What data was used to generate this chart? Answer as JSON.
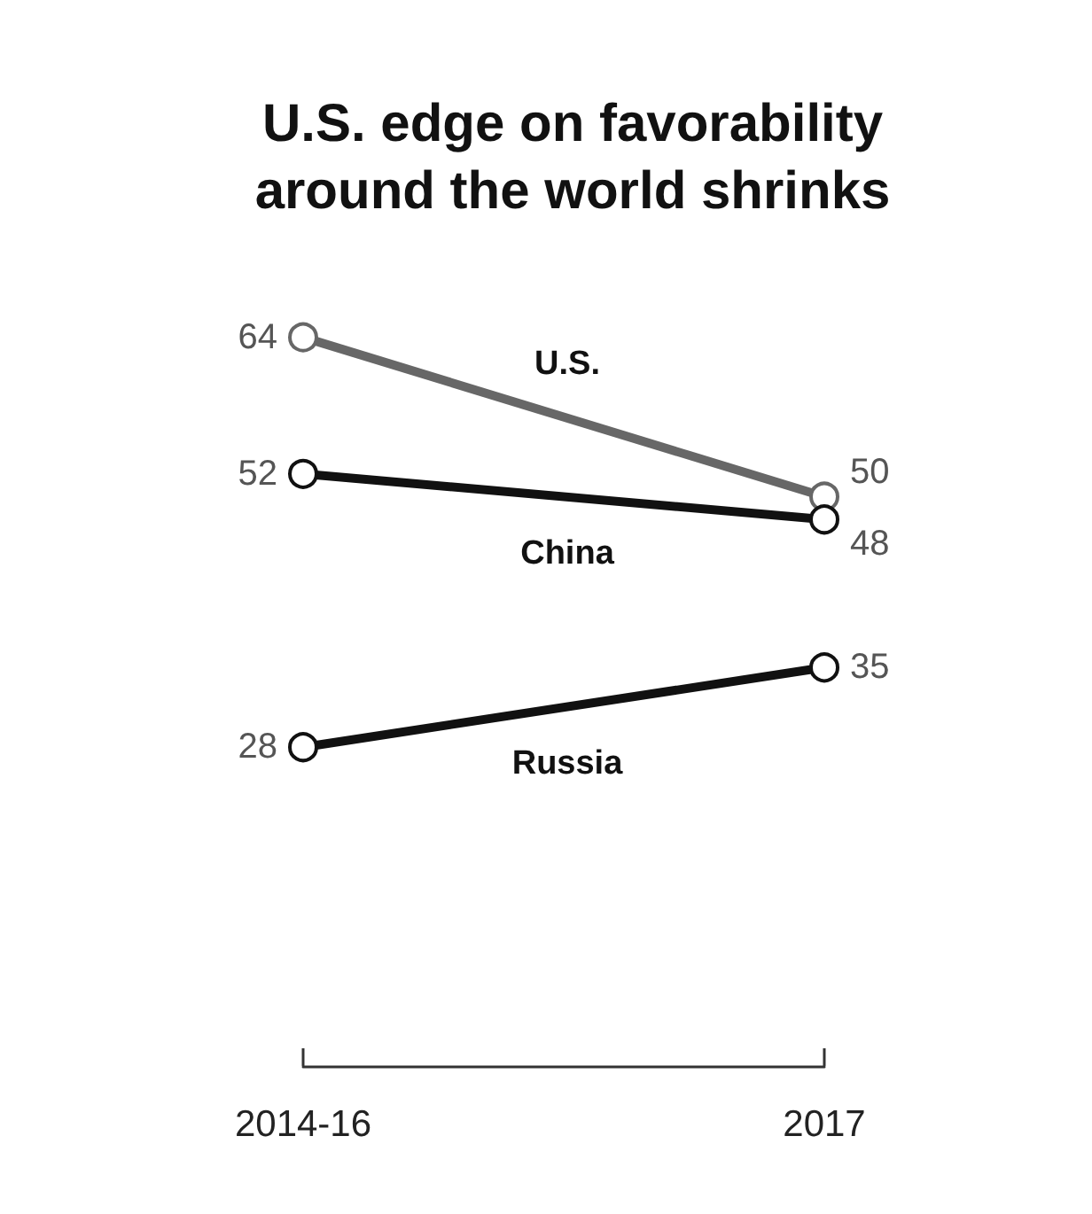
{
  "chart_data": {
    "type": "line",
    "title": "U.S. edge on favorability\naround the world shrinks",
    "categories": [
      "2014-16",
      "2017"
    ],
    "series": [
      {
        "name": "U.S.",
        "color": "#676767",
        "values": [
          64,
          50
        ]
      },
      {
        "name": "China",
        "color": "#111111",
        "values": [
          52,
          48
        ]
      },
      {
        "name": "Russia",
        "color": "#111111",
        "values": [
          28,
          35
        ]
      }
    ],
    "data_labels": true,
    "marker": "circle",
    "line_style": "solid",
    "legend": false,
    "grid": false,
    "tick_labels": "x"
  }
}
